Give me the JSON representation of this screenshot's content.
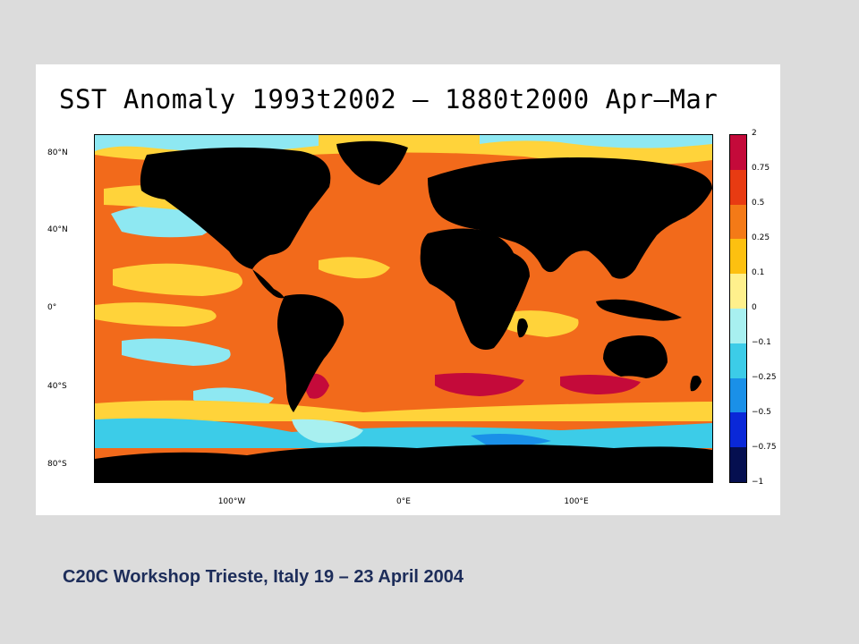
{
  "map": {
    "title": "SST Anomaly 1993t2002 – 1880t2000 Apr–Mar",
    "lat_labels": [
      "80°N",
      "40°N",
      "0°",
      "40°S",
      "80°S"
    ],
    "lon_labels": [
      "100°W",
      "0°E",
      "100°E"
    ],
    "ocean_base_color": "#f26a1b",
    "land_color": "#000000"
  },
  "colorbar": {
    "levels": [
      "2",
      "0.75",
      "0.5",
      "0.25",
      "0.1",
      "0",
      "−0.1",
      "−0.25",
      "−0.5",
      "−0.75",
      "−1"
    ],
    "colors": [
      "#c40a3a",
      "#e83b12",
      "#f47a17",
      "#fdc010",
      "#fff08c",
      "#a8f0f0",
      "#3ccce8",
      "#1a90e8",
      "#0a28d8",
      "#050f50"
    ]
  },
  "footer": {
    "text": "C20C Workshop Trieste, Italy 19 – 23 April 2004"
  }
}
